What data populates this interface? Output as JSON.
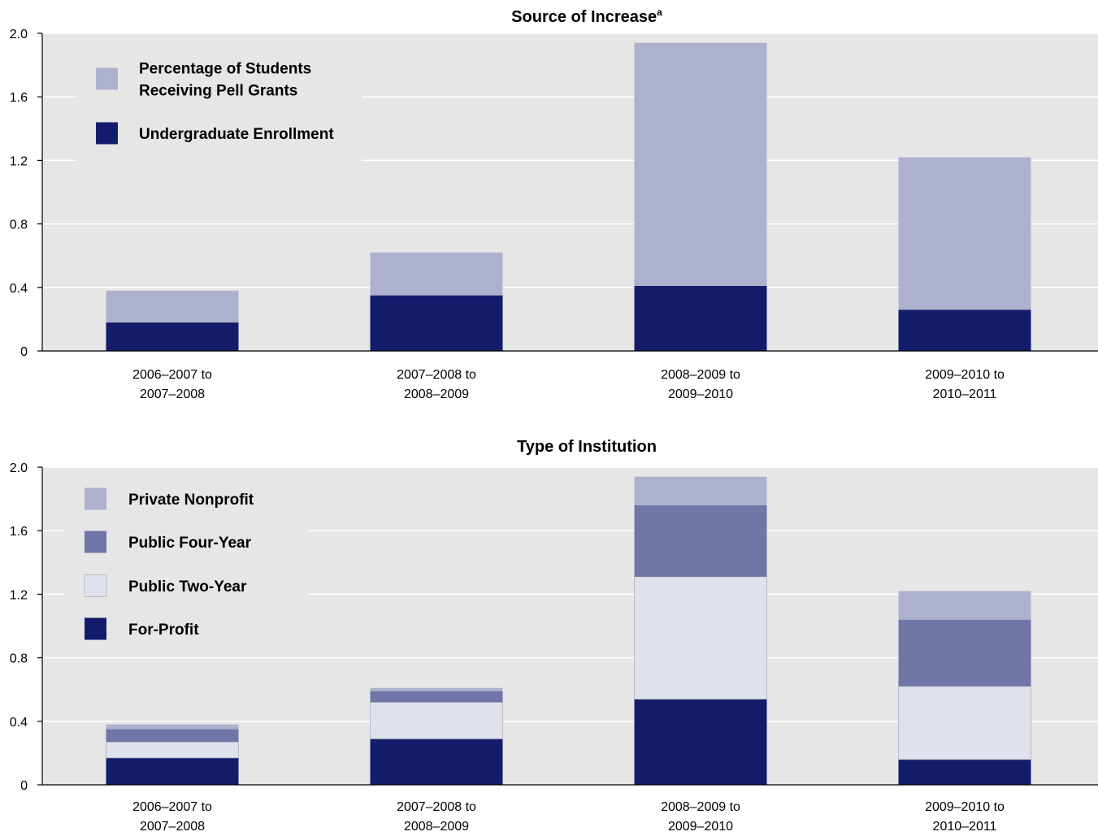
{
  "chart_data": [
    {
      "type": "bar",
      "stacked": true,
      "title": "Source of Increase",
      "title_superscript": "a",
      "categories": [
        [
          "2006–2007 to",
          "2007–2008"
        ],
        [
          "2007–2008 to",
          "2008–2009"
        ],
        [
          "2008–2009 to",
          "2009–2010"
        ],
        [
          "2009–2010 to",
          "2010–2011"
        ]
      ],
      "ylim": [
        0,
        2.0
      ],
      "yticks": [
        "0",
        "0.4",
        "0.8",
        "1.2",
        "1.6",
        "2.0"
      ],
      "ytick_values": [
        0,
        0.4,
        0.8,
        1.2,
        1.6,
        2.0
      ],
      "grid": true,
      "legend_position": "top-left",
      "series": [
        {
          "name": "Undergraduate Enrollment",
          "color": "#131c6b",
          "values": [
            0.18,
            0.35,
            0.41,
            0.26
          ]
        },
        {
          "name": "Percentage of Students Receiving Pell Grants",
          "legend_lines": [
            "Percentage of Students",
            "Receiving Pell Grants"
          ],
          "color": "#aeb1ce",
          "values": [
            0.2,
            0.27,
            1.53,
            0.96
          ]
        }
      ],
      "legend_order": [
        1,
        0
      ]
    },
    {
      "type": "bar",
      "stacked": true,
      "title": "Type of Institution",
      "categories": [
        [
          "2006–2007 to",
          "2007–2008"
        ],
        [
          "2007–2008 to",
          "2008–2009"
        ],
        [
          "2008–2009 to",
          "2009–2010"
        ],
        [
          "2009–2010 to",
          "2010–2011"
        ]
      ],
      "ylim": [
        0,
        2.0
      ],
      "yticks": [
        "0",
        "0.4",
        "0.8",
        "1.2",
        "1.6",
        "2.0"
      ],
      "ytick_values": [
        0,
        0.4,
        0.8,
        1.2,
        1.6,
        2.0
      ],
      "grid": true,
      "legend_position": "top-left",
      "series": [
        {
          "name": "For-Profit",
          "color": "#131c6b",
          "values": [
            0.17,
            0.29,
            0.54,
            0.16
          ]
        },
        {
          "name": "Public Two-Year",
          "color": "#dfe1ec",
          "values": [
            0.1,
            0.23,
            0.77,
            0.46
          ]
        },
        {
          "name": "Public Four-Year",
          "color": "#7076a7",
          "values": [
            0.08,
            0.07,
            0.45,
            0.42
          ]
        },
        {
          "name": "Private Nonprofit",
          "color": "#aeb1ce",
          "values": [
            0.03,
            0.02,
            0.18,
            0.18
          ]
        }
      ],
      "legend_order": [
        3,
        2,
        1,
        0
      ]
    }
  ],
  "style": {
    "plot_background": "#e6e6e6",
    "gridline_color": "#ffffff",
    "axis_color": "#000000"
  }
}
